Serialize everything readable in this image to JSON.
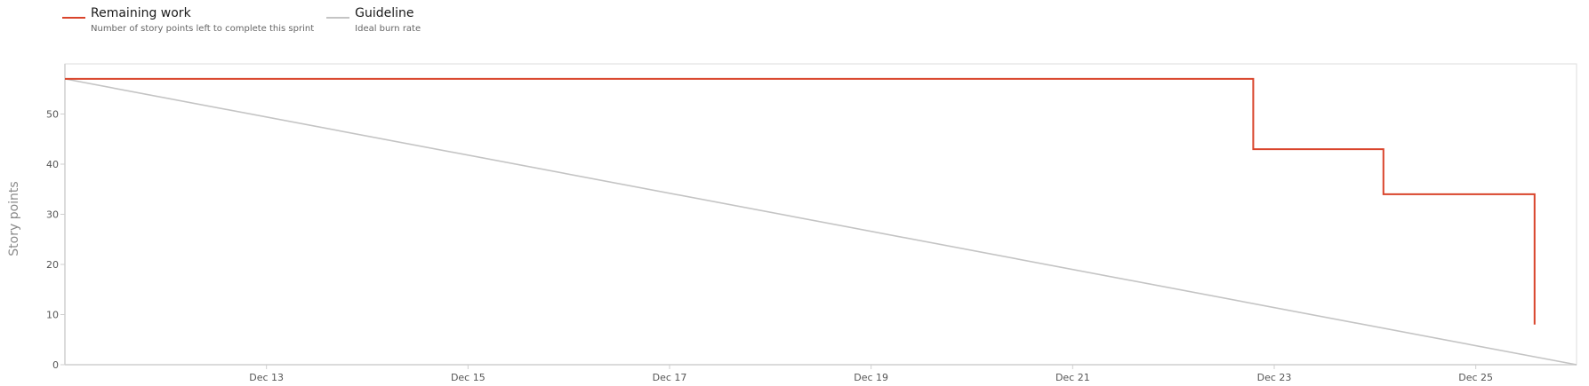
{
  "legend": {
    "remaining_name": "Remaining work",
    "remaining_desc": "Number of story points left to complete this sprint",
    "guideline_name": "Guideline",
    "guideline_desc": "Ideal burn rate"
  },
  "colors": {
    "remaining": "#d9442b",
    "guideline": "#c4c4c4",
    "axis": "#cfcfcf",
    "frame": "#dedede"
  },
  "chart_data": {
    "type": "line",
    "title": "",
    "xlabel": "",
    "ylabel": "Story points",
    "x_start": "2025-12-11",
    "x_end": "2025-12-26",
    "ylim": [
      0,
      60
    ],
    "y_ticks": [
      0,
      10,
      20,
      30,
      40,
      50
    ],
    "x_ticks": [
      {
        "date": "2025-12-13",
        "label": "Dec 13"
      },
      {
        "date": "2025-12-15",
        "label": "Dec 15"
      },
      {
        "date": "2025-12-17",
        "label": "Dec 17"
      },
      {
        "date": "2025-12-19",
        "label": "Dec 19"
      },
      {
        "date": "2025-12-21",
        "label": "Dec 21"
      },
      {
        "date": "2025-12-23",
        "label": "Dec 23"
      },
      {
        "date": "2025-12-25",
        "label": "Dec 25"
      }
    ],
    "grid": false,
    "legend_position": "top-left",
    "series": [
      {
        "name": "Remaining work",
        "step": true,
        "points": [
          {
            "x": "2025-12-11",
            "y": 57
          },
          {
            "x": "2025-12-22 19:00",
            "y": 57
          },
          {
            "x": "2025-12-22 19:00",
            "y": 43
          },
          {
            "x": "2025-12-24 02:00",
            "y": 43
          },
          {
            "x": "2025-12-24 02:00",
            "y": 34
          },
          {
            "x": "2025-12-25 14:00",
            "y": 34
          },
          {
            "x": "2025-12-25 14:00",
            "y": 8
          }
        ]
      },
      {
        "name": "Guideline",
        "step": false,
        "points": [
          {
            "x": "2025-12-11",
            "y": 57
          },
          {
            "x": "2025-12-26",
            "y": 0
          }
        ]
      }
    ]
  }
}
